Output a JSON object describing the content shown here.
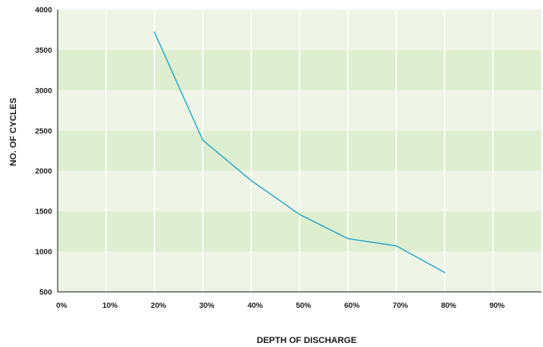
{
  "chart_data": {
    "type": "line",
    "title": "",
    "xlabel": "DEPTH OF DISCHARGE",
    "ylabel": "NO. OF CYCLES",
    "x_ticks": [
      "0%",
      "10%",
      "20%",
      "30%",
      "40%",
      "50%",
      "60%",
      "70%",
      "80%",
      "90%"
    ],
    "y_ticks": [
      "500",
      "1000",
      "1500",
      "2000",
      "2500",
      "3000",
      "3500",
      "4000"
    ],
    "xlim": [
      0,
      100
    ],
    "ylim": [
      500,
      4000
    ],
    "grid": true,
    "series": [
      {
        "x": [
          20,
          30,
          40,
          50,
          60,
          70,
          80
        ],
        "y": [
          3720,
          2380,
          1880,
          1460,
          1160,
          1070,
          740
        ]
      }
    ],
    "colors": {
      "line": "#29a9c9",
      "band_light": "#eef5e6",
      "band_dark": "#deeed0",
      "gridline": "#ffffff",
      "axis": "#1a1a1a"
    }
  }
}
